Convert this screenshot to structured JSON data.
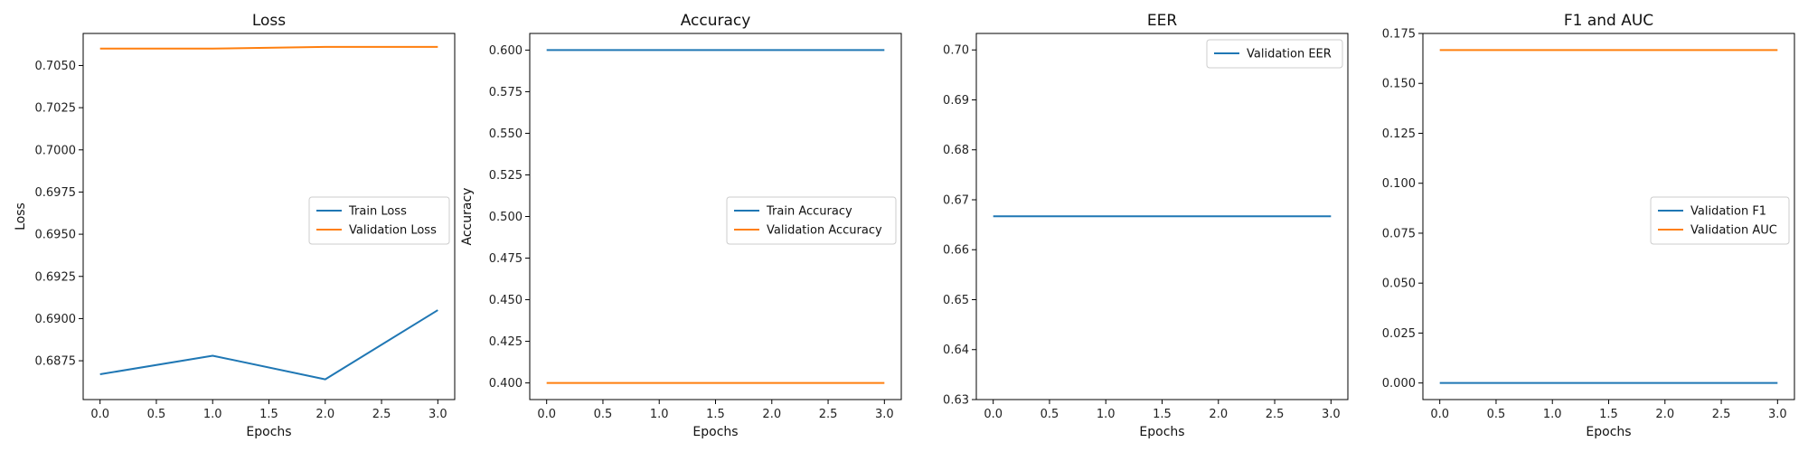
{
  "colors": {
    "series1": "#1f77b4",
    "series2": "#ff7f0e",
    "frame": "#000000"
  },
  "chart_data": [
    {
      "type": "line",
      "title": "Loss",
      "xlabel": "Epochs",
      "ylabel": "Loss",
      "x": [
        0,
        1,
        2,
        3
      ],
      "xlim": [
        -0.15,
        3.15
      ],
      "ylim": [
        0.6852,
        0.7069
      ],
      "xticks": [
        0.0,
        0.5,
        1.0,
        1.5,
        2.0,
        2.5,
        3.0
      ],
      "xtick_labels": [
        "0.0",
        "0.5",
        "1.0",
        "1.5",
        "2.0",
        "2.5",
        "3.0"
      ],
      "yticks": [
        0.6875,
        0.69,
        0.6925,
        0.695,
        0.6975,
        0.7,
        0.7025,
        0.705
      ],
      "ytick_labels": [
        "0.6875",
        "0.6900",
        "0.6925",
        "0.6950",
        "0.6975",
        "0.7000",
        "0.7025",
        "0.7050"
      ],
      "legend_position": "center-right",
      "series": [
        {
          "name": "Train Loss",
          "values": [
            0.6867,
            0.6878,
            0.6864,
            0.6905
          ]
        },
        {
          "name": "Validation Loss",
          "values": [
            0.706,
            0.706,
            0.7061,
            0.7061
          ]
        }
      ]
    },
    {
      "type": "line",
      "title": "Accuracy",
      "xlabel": "Epochs",
      "ylabel": "Accuracy",
      "x": [
        0,
        1,
        2,
        3
      ],
      "xlim": [
        -0.15,
        3.15
      ],
      "ylim": [
        0.39,
        0.61
      ],
      "xticks": [
        0.0,
        0.5,
        1.0,
        1.5,
        2.0,
        2.5,
        3.0
      ],
      "xtick_labels": [
        "0.0",
        "0.5",
        "1.0",
        "1.5",
        "2.0",
        "2.5",
        "3.0"
      ],
      "yticks": [
        0.4,
        0.425,
        0.45,
        0.475,
        0.5,
        0.525,
        0.55,
        0.575,
        0.6
      ],
      "ytick_labels": [
        "0.400",
        "0.425",
        "0.450",
        "0.475",
        "0.500",
        "0.525",
        "0.550",
        "0.575",
        "0.600"
      ],
      "legend_position": "center-right",
      "series": [
        {
          "name": "Train Accuracy",
          "values": [
            0.6,
            0.6,
            0.6,
            0.6
          ]
        },
        {
          "name": "Validation Accuracy",
          "values": [
            0.4,
            0.4,
            0.4,
            0.4
          ]
        }
      ]
    },
    {
      "type": "line",
      "title": "EER",
      "xlabel": "Epochs",
      "ylabel": "",
      "x": [
        0,
        1,
        2,
        3
      ],
      "xlim": [
        -0.15,
        3.15
      ],
      "ylim": [
        0.63,
        0.7033
      ],
      "xticks": [
        0.0,
        0.5,
        1.0,
        1.5,
        2.0,
        2.5,
        3.0
      ],
      "xtick_labels": [
        "0.0",
        "0.5",
        "1.0",
        "1.5",
        "2.0",
        "2.5",
        "3.0"
      ],
      "yticks": [
        0.63,
        0.64,
        0.65,
        0.66,
        0.67,
        0.68,
        0.69,
        0.7
      ],
      "ytick_labels": [
        "0.63",
        "0.64",
        "0.65",
        "0.66",
        "0.67",
        "0.68",
        "0.69",
        "0.70"
      ],
      "legend_position": "top-right",
      "series": [
        {
          "name": "Validation EER",
          "values": [
            0.6667,
            0.6667,
            0.6667,
            0.6667
          ]
        }
      ]
    },
    {
      "type": "line",
      "title": "F1 and AUC",
      "xlabel": "Epochs",
      "ylabel": "",
      "x": [
        0,
        1,
        2,
        3
      ],
      "xlim": [
        -0.15,
        3.15
      ],
      "ylim": [
        -0.0083,
        0.175
      ],
      "xticks": [
        0.0,
        0.5,
        1.0,
        1.5,
        2.0,
        2.5,
        3.0
      ],
      "xtick_labels": [
        "0.0",
        "0.5",
        "1.0",
        "1.5",
        "2.0",
        "2.5",
        "3.0"
      ],
      "yticks": [
        0.0,
        0.025,
        0.05,
        0.075,
        0.1,
        0.125,
        0.15,
        0.175
      ],
      "ytick_labels": [
        "0.000",
        "0.025",
        "0.050",
        "0.075",
        "0.100",
        "0.125",
        "0.150",
        "0.175"
      ],
      "legend_position": "center-right",
      "series": [
        {
          "name": "Validation F1",
          "values": [
            0.0,
            0.0,
            0.0,
            0.0
          ]
        },
        {
          "name": "Validation AUC",
          "values": [
            0.1667,
            0.1667,
            0.1667,
            0.1667
          ]
        }
      ]
    }
  ]
}
